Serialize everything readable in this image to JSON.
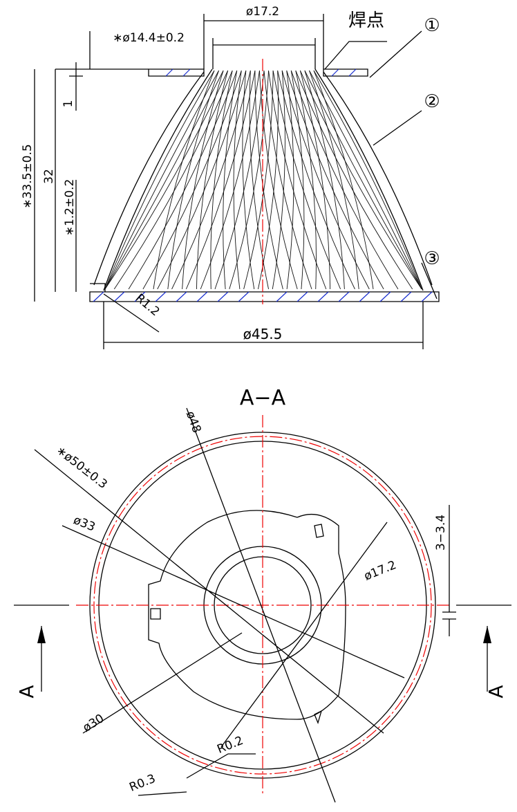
{
  "top_view": {
    "dim_top": "ø17.2",
    "weld_label": "焊点",
    "callout_1": "①",
    "dim_inner_top": "∗ø14.4±0.2",
    "callout_2": "②",
    "dim_thickness": "1",
    "dim_height_total": "∗33.5±0.5",
    "dim_height": "32",
    "dim_base": "∗1.2±0.2",
    "callout_3": "③",
    "radius_base": "R1.2",
    "dim_bottom": "ø45.5"
  },
  "section": {
    "title": "A−A",
    "dim_48": "ø48",
    "dim_50": "∗ø50±0.3",
    "dim_33": "ø33",
    "dim_17": "ø17.2",
    "dim_slot": "3−3.4",
    "marker_left": "A",
    "marker_right": "A",
    "dim_30": "ø30",
    "radius_02": "R0.2",
    "radius_03": "R0.3"
  }
}
